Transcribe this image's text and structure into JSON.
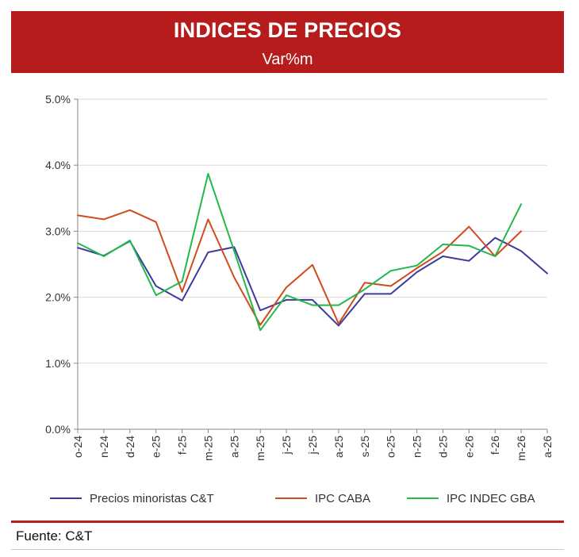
{
  "header": {
    "title": "INDICES DE PRECIOS",
    "subtitle": "Var%m"
  },
  "footer": {
    "source": "Fuente: C&T"
  },
  "colors": {
    "banner": "#b71c1c",
    "series": [
      "#3b3b9e",
      "#d24a1e",
      "#22b84a"
    ]
  },
  "chart_data": {
    "type": "line",
    "categories": [
      "o-24",
      "n-24",
      "d-24",
      "e-25",
      "f-25",
      "m-25",
      "a-25",
      "m-25",
      "j-25",
      "j-25",
      "a-25",
      "s-25",
      "o-25",
      "n-25",
      "d-25",
      "e-26",
      "f-26",
      "m-26",
      "a-26"
    ],
    "y_ticks": [
      "0.0%",
      "1.0%",
      "2.0%",
      "3.0%",
      "4.0%",
      "5.0%"
    ],
    "ylim": [
      0,
      5
    ],
    "grid": "horizontal",
    "legend_position": "bottom",
    "series": [
      {
        "name": "Precios minoristas C&T",
        "values": [
          2.75,
          2.63,
          2.85,
          2.17,
          1.95,
          2.68,
          2.76,
          1.8,
          1.96,
          1.96,
          1.57,
          2.05,
          2.05,
          2.38,
          2.62,
          2.55,
          2.9,
          2.7,
          2.36
        ]
      },
      {
        "name": "IPC CABA",
        "values": [
          3.24,
          3.18,
          3.32,
          3.14,
          2.08,
          3.18,
          2.3,
          1.58,
          2.15,
          2.49,
          1.6,
          2.22,
          2.17,
          2.44,
          2.69,
          3.07,
          2.62,
          3.0,
          null
        ]
      },
      {
        "name": "IPC INDEC GBA",
        "values": [
          2.82,
          2.62,
          2.86,
          2.03,
          2.24,
          3.87,
          2.7,
          1.5,
          2.03,
          1.88,
          1.88,
          2.12,
          2.4,
          2.48,
          2.8,
          2.78,
          2.62,
          3.41,
          null
        ]
      }
    ]
  }
}
